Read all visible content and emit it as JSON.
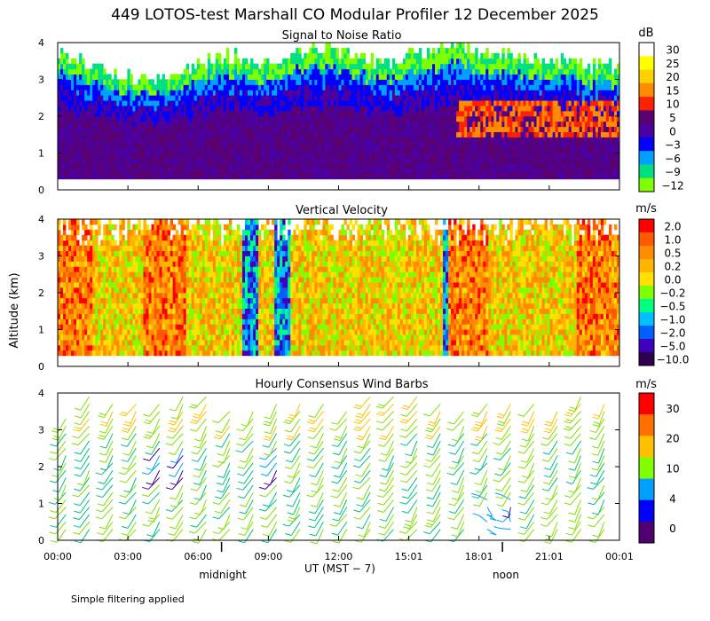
{
  "header": {
    "title": "449 LOTOS-test Marshall CO Modular Profiler 12 December 2025"
  },
  "footer": {
    "note": "Simple filtering applied",
    "midnight_label": "midnight",
    "noon_label": "noon"
  },
  "axes": {
    "ylabel": "Altitude (km)",
    "xlabel": "UT  (MST − 7)",
    "y_ticks": [
      "0",
      "1",
      "2",
      "3",
      "4"
    ],
    "x_ticks": [
      "00:00",
      "03:00",
      "06:00",
      "09:00",
      "12:00",
      "15:01",
      "18:01",
      "21:01",
      "00:01"
    ],
    "x_range_hours": [
      0,
      24
    ],
    "y_range_km": [
      0,
      4
    ],
    "midnight_hour": 7,
    "noon_hour": 19
  },
  "chart_data": [
    {
      "type": "heatmap",
      "title": "Signal to Noise Ratio",
      "units": "dB",
      "colorbar_labels": [
        "30",
        "25",
        "20",
        "15",
        "10",
        "5",
        "0",
        "−3",
        "−6",
        "−9",
        "−12"
      ],
      "colorbar_colors": [
        "#ffffff",
        "#ffff00",
        "#ffd000",
        "#ff8c00",
        "#ff2000",
        "#5a0070",
        "#4b00a0",
        "#0000ff",
        "#00a0ff",
        "#00e080",
        "#80ff00"
      ],
      "profile_top_km_by_hour": [
        3.7,
        3.4,
        3.2,
        3.0,
        2.9,
        3.1,
        3.4,
        3.6,
        3.5,
        3.3,
        3.6,
        3.8,
        3.7,
        3.5,
        3.4,
        3.6,
        3.8,
        3.9,
        3.7,
        3.6,
        3.5,
        3.4,
        3.4,
        3.3,
        3.3
      ],
      "high_snr_layer": {
        "start_hour": 17,
        "end_hour": 24,
        "base_km": 1.3,
        "top_km": 2.4,
        "snr_db": 10
      }
    },
    {
      "type": "heatmap",
      "title": "Vertical Velocity",
      "units": "m/s",
      "colorbar_labels": [
        "2.0",
        "1.0",
        "0.5",
        "0.2",
        "0.0",
        "−0.2",
        "−0.5",
        "−1.0",
        "−2.0",
        "−5.0",
        "−10.0"
      ],
      "colorbar_colors": [
        "#ff0000",
        "#ff5a00",
        "#ff8c00",
        "#ffb400",
        "#ffe000",
        "#80ff00",
        "#00ff80",
        "#00c0ff",
        "#0060ff",
        "#4000c0",
        "#300050"
      ],
      "downdraft_hours": [
        8.2,
        9.5,
        16.8
      ],
      "updraft_hours": [
        0.5,
        4.5,
        17.5,
        23.0
      ]
    },
    {
      "type": "scatter",
      "title": "Hourly Consensus Wind Barbs",
      "units": "m/s",
      "colorbar_labels": [
        "30",
        "20",
        "10",
        "4",
        "0"
      ],
      "colorbar_colors": [
        "#ff0000",
        "#ff7000",
        "#ffc000",
        "#80ff00",
        "#00a0ff",
        "#0000ff",
        "#500070"
      ],
      "barb_hours": [
        0,
        1,
        2,
        3,
        4,
        5,
        6,
        7,
        8,
        9,
        10,
        11,
        12,
        13,
        14,
        15,
        16,
        17,
        18,
        19,
        20,
        21,
        22,
        23
      ],
      "barb_top_km": [
        3.3,
        3.9,
        3.8,
        3.8,
        3.8,
        4.1,
        4.1,
        3.5,
        3.6,
        3.8,
        3.8,
        3.7,
        3.6,
        3.9,
        3.9,
        3.9,
        3.8,
        3.6,
        3.8,
        3.7,
        3.7,
        3.6,
        4.0,
        3.8
      ],
      "calm_zone": {
        "start_hour": 17.5,
        "end_hour": 20,
        "top_km": 1.2
      },
      "wind_speed_profile_ms": {
        "surface": 12,
        "mid": 10,
        "top": 16
      }
    }
  ]
}
